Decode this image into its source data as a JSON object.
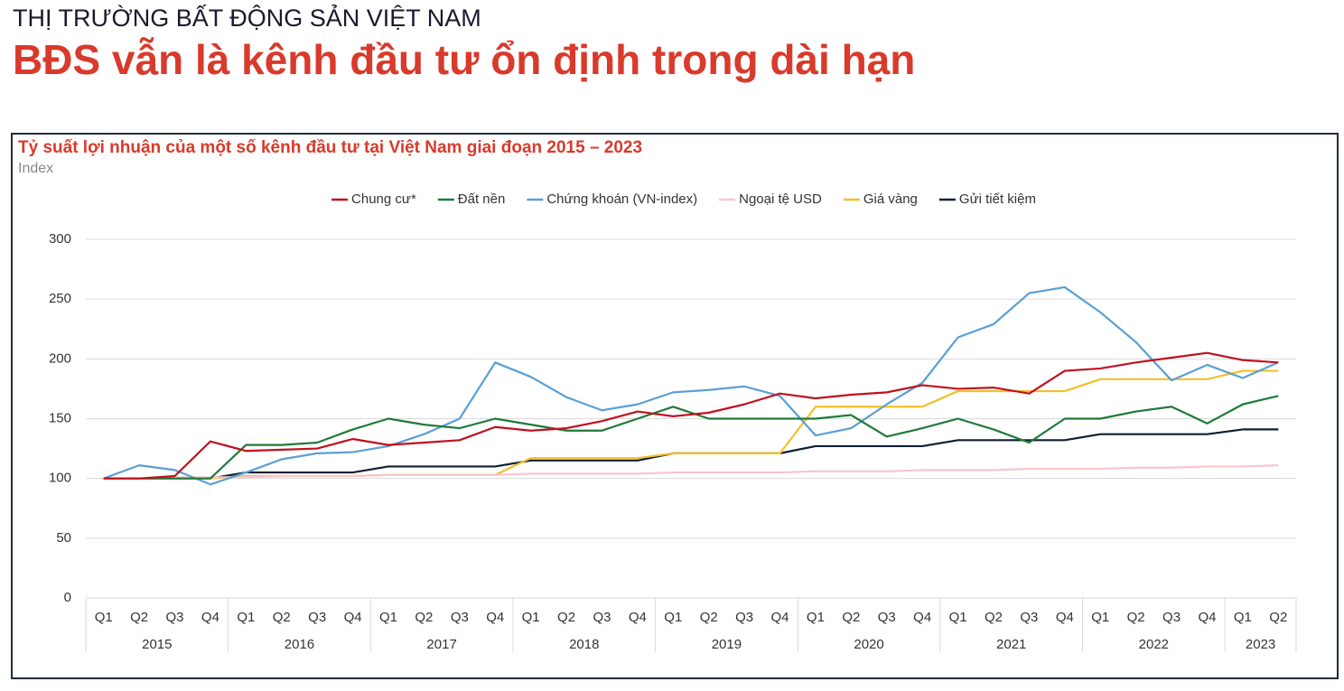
{
  "header": {
    "kicker": "THỊ TRƯỜNG BẤT ĐỘNG SẢN VIỆT NAM",
    "title": "BĐS vẫn là kênh đầu tư ổn định trong dài hạn"
  },
  "chart_data": {
    "type": "line",
    "title": "Tỷ suất lợi nhuận của một số kênh đầu tư tại Việt Nam giai đoạn 2015 – 2023",
    "y_label": "Index",
    "categories": [
      "Q1",
      "Q2",
      "Q3",
      "Q4",
      "Q1",
      "Q2",
      "Q3",
      "Q4",
      "Q1",
      "Q2",
      "Q3",
      "Q4",
      "Q1",
      "Q2",
      "Q3",
      "Q4",
      "Q1",
      "Q2",
      "Q3",
      "Q4",
      "Q1",
      "Q2",
      "Q3",
      "Q4",
      "Q1",
      "Q2",
      "Q3",
      "Q4",
      "Q1",
      "Q2",
      "Q3",
      "Q4",
      "Q1",
      "Q2"
    ],
    "category_groups": [
      "2015",
      "2016",
      "2017",
      "2018",
      "2019",
      "2020",
      "2021",
      "2022",
      "2023"
    ],
    "series": [
      {
        "name": "Chung cư*",
        "color": "#c0111f",
        "values": [
          100,
          100,
          102,
          131,
          123,
          124,
          125,
          133,
          128,
          130,
          132,
          143,
          140,
          142,
          148,
          156,
          152,
          155,
          162,
          171,
          167,
          170,
          172,
          178,
          175,
          176,
          171,
          190,
          192,
          197,
          201,
          205,
          199,
          197
        ]
      },
      {
        "name": "Đất nền",
        "color": "#1e7b3a",
        "values": [
          100,
          100,
          100,
          100,
          128,
          128,
          130,
          141,
          150,
          145,
          142,
          150,
          145,
          140,
          140,
          150,
          160,
          150,
          150,
          150,
          150,
          153,
          135,
          142,
          150,
          141,
          130,
          150,
          150,
          156,
          160,
          146,
          162,
          169
        ]
      },
      {
        "name": "Chứng khoán (VN-index)",
        "color": "#5a9fd4",
        "values": [
          100,
          111,
          107,
          95,
          105,
          116,
          121,
          122,
          127,
          137,
          150,
          197,
          185,
          168,
          157,
          162,
          172,
          174,
          177,
          169,
          136,
          142,
          162,
          180,
          218,
          229,
          255,
          260,
          239,
          214,
          182,
          195,
          184,
          197
        ]
      },
      {
        "name": "Ngoại tệ USD",
        "color": "#f9c6cc",
        "values": [
          100,
          100,
          101,
          101,
          101,
          102,
          102,
          102,
          103,
          103,
          103,
          103,
          104,
          104,
          104,
          104,
          105,
          105,
          105,
          105,
          106,
          106,
          106,
          107,
          107,
          107,
          108,
          108,
          108,
          109,
          109,
          110,
          110,
          111
        ]
      },
      {
        "name": "Giá vàng",
        "color": "#f5bf2a",
        "values": [
          100,
          100,
          100,
          100,
          102,
          102,
          102,
          102,
          103,
          103,
          103,
          103,
          117,
          117,
          117,
          117,
          121,
          121,
          121,
          121,
          160,
          160,
          160,
          160,
          173,
          173,
          173,
          173,
          183,
          183,
          183,
          183,
          190,
          190
        ]
      },
      {
        "name": "Gửi tiết kiệm",
        "color": "#0e1f33",
        "values": [
          100,
          100,
          100,
          100,
          105,
          105,
          105,
          105,
          110,
          110,
          110,
          110,
          115,
          115,
          115,
          115,
          121,
          121,
          121,
          121,
          127,
          127,
          127,
          127,
          132,
          132,
          132,
          132,
          137,
          137,
          137,
          137,
          141,
          141
        ]
      }
    ],
    "ylim": [
      0,
      300
    ],
    "yticks": [
      0,
      50,
      100,
      150,
      200,
      250,
      300
    ],
    "grid": true,
    "legend": "top"
  }
}
